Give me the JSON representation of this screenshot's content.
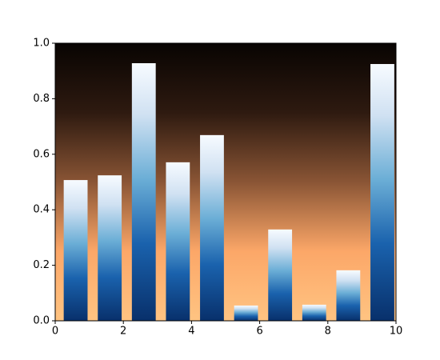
{
  "chart_data": {
    "type": "bar",
    "x": [
      0.6,
      1.6,
      2.6,
      3.6,
      4.6,
      5.6,
      6.6,
      7.6,
      8.6,
      9.6
    ],
    "width": 0.7,
    "values": [
      0.507,
      0.524,
      0.928,
      0.571,
      0.669,
      0.055,
      0.329,
      0.058,
      0.182,
      0.925
    ],
    "xlim": [
      0,
      10
    ],
    "xticks": [
      0,
      2,
      4,
      6,
      8,
      10
    ],
    "ylim": [
      0,
      1
    ],
    "yticks": [
      {
        "value": 0,
        "label": "0.0"
      },
      0.2,
      0.4,
      0.6,
      0.8,
      {
        "value": 1,
        "label": "1.0"
      }
    ],
    "grid": false
  }
}
